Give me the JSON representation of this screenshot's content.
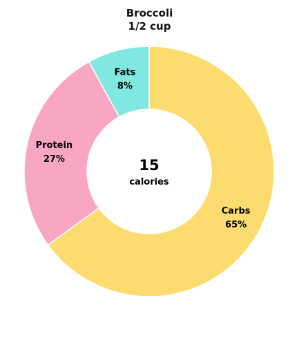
{
  "chart_data": {
    "type": "pie",
    "title": "Broccoli",
    "subtitle": "1/2 cup",
    "center": {
      "value": "15",
      "label": "calories"
    },
    "slices": [
      {
        "name": "Carbs",
        "value": 65,
        "label": "65%",
        "color": "#FDDC6F"
      },
      {
        "name": "Protein",
        "value": 27,
        "label": "27%",
        "color": "#F9A6C5"
      },
      {
        "name": "Fats",
        "value": 8,
        "label": "8%",
        "color": "#80E8E0"
      }
    ]
  }
}
